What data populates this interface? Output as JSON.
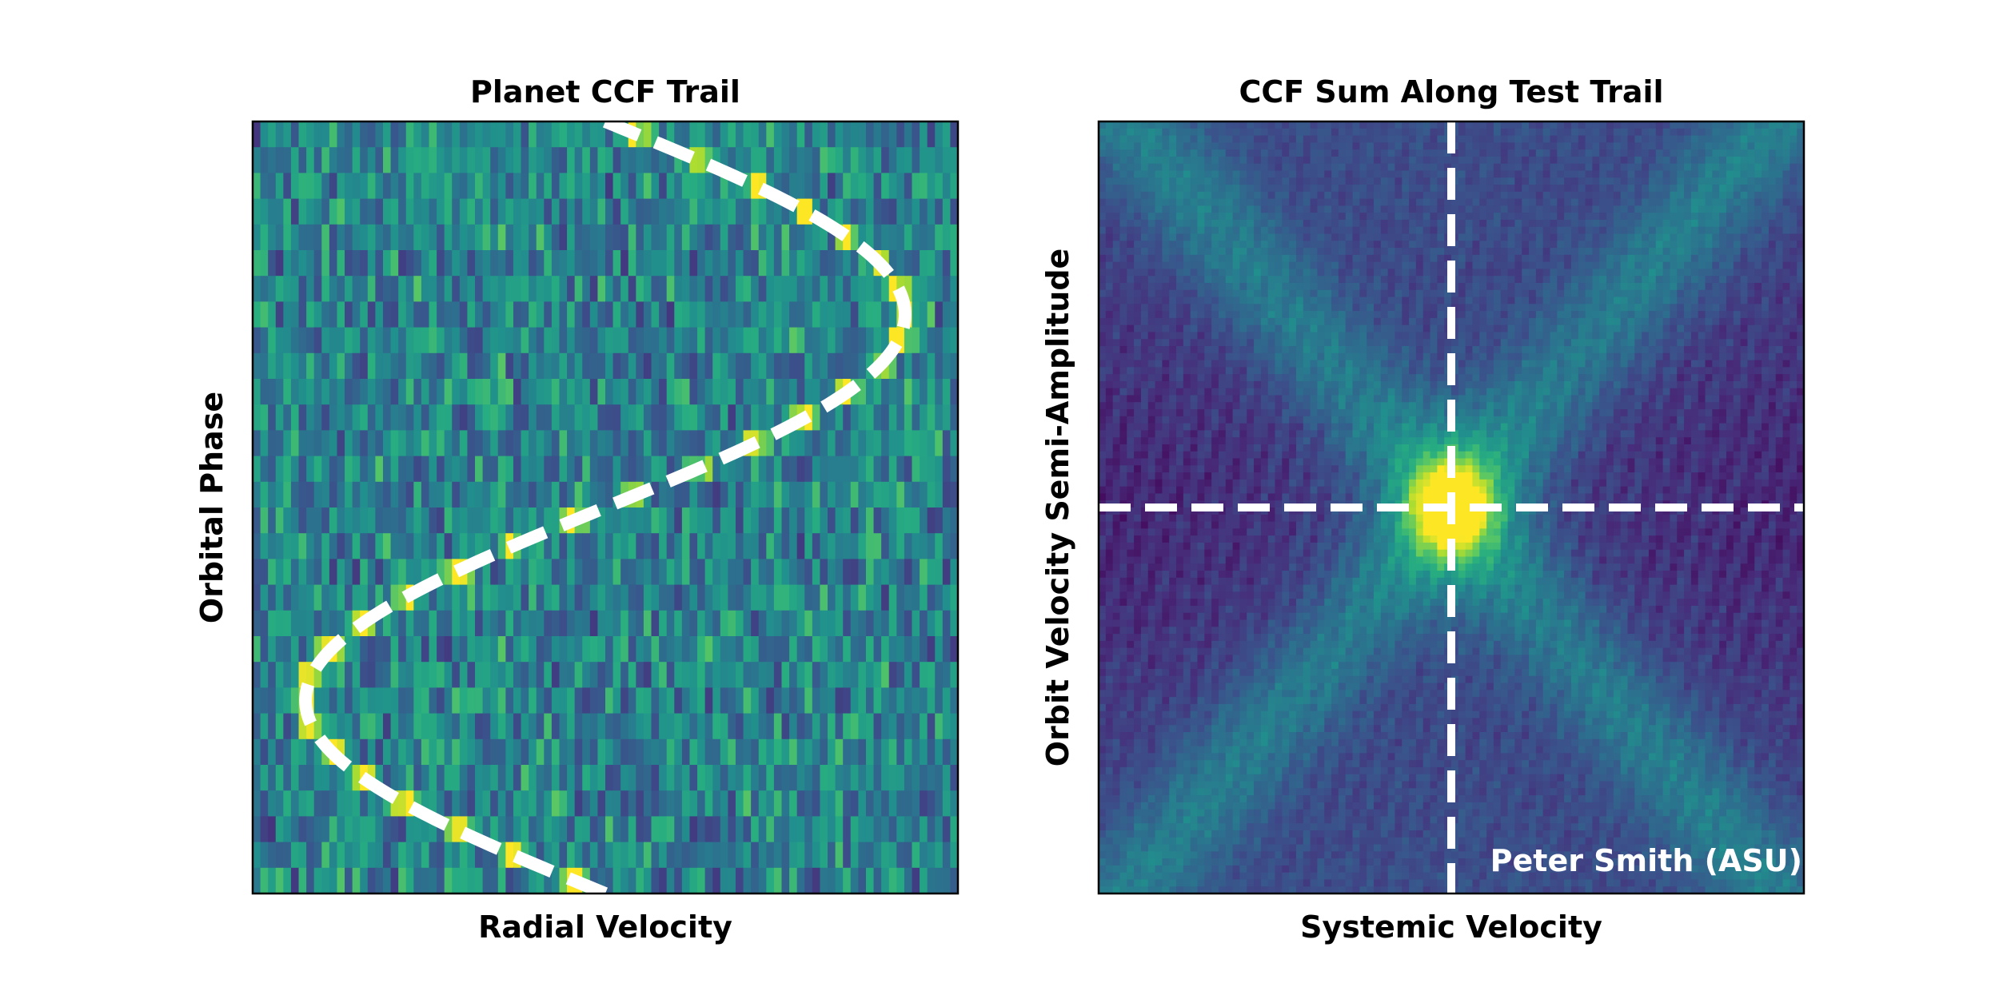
{
  "chart_data": [
    {
      "type": "heatmap",
      "title": "Planet CCF Trail",
      "xlabel": "Radial Velocity",
      "ylabel": "Orbital Phase",
      "colormap": "viridis",
      "grid": false,
      "ticks": "none",
      "overlay": {
        "type": "dashed-line",
        "color": "#ffffff",
        "shape": "sinusoid",
        "amplitude": 0.425,
        "center": 0.5,
        "cycles": 1,
        "description_axis": "radial velocity vs orbital phase (normalized, 0-1)",
        "points": [
          {
            "phase": 0.0,
            "rv": 0.5
          },
          {
            "phase": 0.125,
            "rv": 0.8
          },
          {
            "phase": 0.25,
            "rv": 0.925
          },
          {
            "phase": 0.375,
            "rv": 0.8
          },
          {
            "phase": 0.5,
            "rv": 0.5
          },
          {
            "phase": 0.625,
            "rv": 0.2
          },
          {
            "phase": 0.75,
            "rv": 0.075
          },
          {
            "phase": 0.875,
            "rv": 0.2
          },
          {
            "phase": 1.0,
            "rv": 0.5
          }
        ]
      }
    },
    {
      "type": "heatmap",
      "title": "CCF Sum Along Test Trail",
      "xlabel": "Systemic Velocity",
      "ylabel": "Orbit Velocity Semi-Amplitude",
      "colormap": "viridis",
      "grid": false,
      "ticks": "none",
      "peak": {
        "x": 0.5,
        "y": 0.5
      },
      "crosshair": {
        "color": "#ffffff",
        "style": "dashed",
        "x": 0.5,
        "y": 0.5
      }
    }
  ],
  "credit": "Peter Smith (ASU)",
  "colors": {
    "viridis_low": "#440154",
    "viridis_mid": "#21918c",
    "viridis_high": "#fde725",
    "overlay": "#ffffff"
  }
}
